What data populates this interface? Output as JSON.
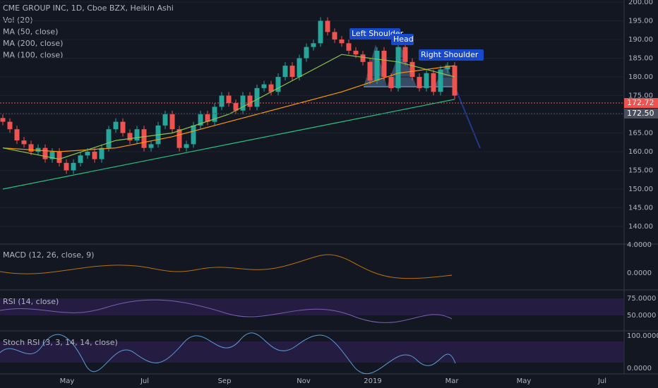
{
  "header": {
    "title": "CME GROUP INC, 1D, Cboe BZX, Heikin Ashi",
    "indicators": [
      "Vol (20)",
      "MA (50, close)",
      "MA (200, close)",
      "MA (100, close)"
    ]
  },
  "price_panel": {
    "closes": [
      168,
      166,
      163,
      162,
      160,
      161,
      158,
      160,
      157,
      155,
      157,
      159,
      160,
      158,
      161,
      166,
      168,
      165,
      163,
      166,
      161,
      162,
      167,
      170,
      166,
      161,
      162,
      167,
      170,
      168,
      172,
      175,
      173,
      171,
      175,
      172,
      177,
      178,
      176,
      180,
      183,
      180,
      185,
      188,
      189,
      195,
      192,
      190,
      189,
      187,
      186,
      184,
      179,
      187,
      180,
      177,
      188,
      184,
      180,
      177,
      181,
      176,
      182,
      183,
      175
    ],
    "ma_50": [
      161,
      158,
      163,
      165,
      170,
      178,
      186,
      184,
      180
    ],
    "ma_100": [
      161,
      160,
      161,
      164,
      168,
      172,
      176,
      181,
      183
    ],
    "ma_200": [
      150,
      153,
      156,
      159,
      162,
      165,
      168,
      171,
      174
    ],
    "price_axis": [
      "200.00",
      "195.00",
      "190.00",
      "185.00",
      "180.00",
      "175.00",
      "170.00",
      "165.00",
      "160.00",
      "155.00",
      "150.00",
      "145.00",
      "140.00"
    ],
    "price_tags": [
      "172.72",
      "172.50"
    ],
    "annotations": [
      "Left Shoulder",
      "Head",
      "Right Shoulder"
    ]
  },
  "macd_panel": {
    "label": "MACD (12, 26, close, 9)",
    "axis": [
      "4.0000",
      "0.0000"
    ]
  },
  "rsi_panel": {
    "label": "RSI (14, close)",
    "axis": [
      "75.0000",
      "50.0000"
    ]
  },
  "stoch_panel": {
    "label": "Stoch RSI (3, 3, 14, 14, close)",
    "axis": [
      "100.0000",
      "0.0000"
    ]
  },
  "time_axis": [
    "May",
    "Jul",
    "Sep",
    "Nov",
    "2019",
    "Mar",
    "May",
    "Jul"
  ]
}
